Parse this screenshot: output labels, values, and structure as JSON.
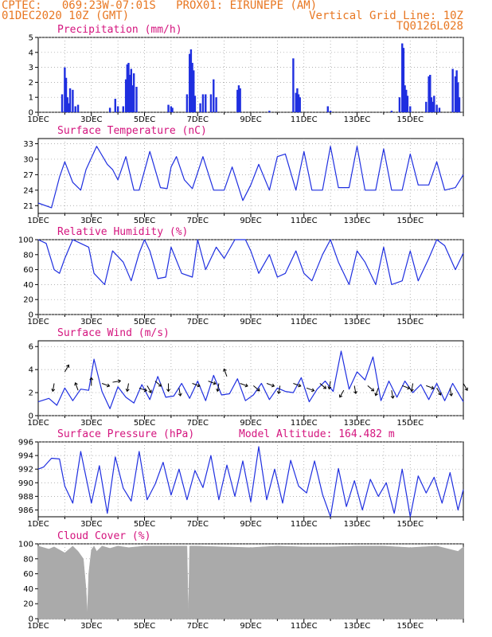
{
  "header": {
    "line1_left": "CPTEC:   069:23W-07:01S   PROX01: EIRUNEPE (AM)",
    "line2_left": "01DEC2020 10Z (GMT)",
    "line2_right": "Vertical Grid Line: 10Z",
    "line3_right": "TQ0126L028"
  },
  "colors": {
    "header_text": "#e87722",
    "panel_title": "#d4147e",
    "series": "#1f2fe0",
    "cloud": "#aaaaaa",
    "grid": "#999999"
  },
  "x_axis_labels": [
    "1DEC",
    "3DEC",
    "5DEC",
    "7DEC",
    "9DEC",
    "11DEC",
    "13DEC",
    "15DEC"
  ],
  "panels": [
    {
      "key": "precip",
      "title": "Precipitation (mm/h)",
      "subtitle": ""
    },
    {
      "key": "temp",
      "title": "Surface Temperature (nC)",
      "subtitle": ""
    },
    {
      "key": "rh",
      "title": "Relative Humidity (%)",
      "subtitle": ""
    },
    {
      "key": "wind",
      "title": "Surface Wind (m/s)",
      "subtitle": ""
    },
    {
      "key": "pres",
      "title": "Surface Pressure (hPa)",
      "subtitle": "Model Altitude: 164.482 m"
    },
    {
      "key": "cloud",
      "title": "Cloud Cover (%)",
      "subtitle": ""
    }
  ],
  "chart_data": [
    {
      "type": "bar",
      "title": "Precipitation (mm/h)",
      "x_unit": "days since 01DEC2020 10Z",
      "ylim": [
        0,
        5
      ],
      "yticks": [
        0,
        1,
        2,
        3,
        4,
        5
      ],
      "x": [
        0.9,
        1.0,
        1.05,
        1.1,
        1.15,
        1.2,
        1.3,
        1.4,
        1.5,
        2.7,
        2.9,
        3.0,
        3.2,
        3.3,
        3.35,
        3.4,
        3.45,
        3.5,
        3.55,
        3.6,
        3.7,
        4.9,
        5.0,
        5.05,
        5.6,
        5.7,
        5.75,
        5.8,
        5.85,
        5.9,
        6.1,
        6.2,
        6.3,
        6.5,
        6.6,
        6.7,
        7.5,
        7.55,
        7.6,
        8.7,
        9.6,
        9.7,
        9.75,
        9.8,
        9.85,
        10.9,
        11.0,
        13.3,
        13.6,
        13.7,
        13.75,
        13.8,
        13.85,
        13.9,
        14.0,
        14.6,
        14.7,
        14.75,
        14.8,
        14.85,
        14.9,
        15.0,
        15.1,
        15.6,
        15.7,
        15.75,
        15.8,
        15.85
      ],
      "values": [
        1.2,
        3.0,
        2.3,
        1.0,
        0.6,
        1.6,
        1.5,
        0.4,
        0.5,
        0.3,
        0.9,
        0.4,
        0.4,
        2.2,
        3.2,
        3.3,
        2.5,
        2.9,
        1.8,
        2.6,
        1.7,
        0.5,
        0.4,
        0.3,
        1.2,
        3.9,
        4.2,
        3.3,
        2.8,
        1.1,
        0.6,
        1.2,
        1.2,
        1.2,
        2.2,
        1.0,
        1.5,
        1.8,
        1.6,
        0.1,
        3.6,
        1.3,
        1.6,
        1.2,
        1.0,
        0.4,
        0.1,
        0.1,
        1.0,
        4.6,
        4.3,
        1.8,
        1.5,
        1.1,
        0.4,
        0.7,
        2.4,
        2.5,
        1.0,
        0.7,
        1.1,
        0.5,
        0.3,
        2.9,
        2.4,
        2.8,
        2.0,
        1.0
      ]
    },
    {
      "type": "line",
      "title": "Surface Temperature (nC)",
      "x_unit": "days since 01DEC2020 10Z",
      "ylim": [
        19.5,
        34
      ],
      "yticks": [
        21,
        24,
        27,
        30,
        33
      ],
      "x": [
        0.0,
        0.5,
        0.8,
        1.0,
        1.3,
        1.6,
        1.8,
        2.2,
        2.6,
        2.8,
        3.0,
        3.3,
        3.6,
        3.8,
        4.2,
        4.6,
        4.85,
        5.0,
        5.2,
        5.5,
        5.8,
        6.2,
        6.6,
        7.0,
        7.3,
        7.7,
        8.0,
        8.3,
        8.7,
        9.0,
        9.3,
        9.7,
        10.0,
        10.3,
        10.7,
        11.0,
        11.3,
        11.7,
        12.0,
        12.3,
        12.7,
        13.0,
        13.3,
        13.7,
        14.0,
        14.3,
        14.7,
        15.0,
        15.3,
        15.7,
        16.0
      ],
      "y": [
        21.5,
        20.6,
        26.5,
        29.5,
        25.5,
        24.0,
        28.0,
        32.5,
        29.0,
        28.0,
        26.0,
        30.5,
        24.0,
        24.0,
        31.5,
        24.5,
        24.3,
        28.5,
        30.5,
        26.0,
        24.3,
        30.5,
        24.0,
        24.0,
        28.5,
        22.0,
        25.0,
        29.0,
        24.0,
        30.5,
        31.0,
        24.0,
        31.5,
        24.0,
        24.0,
        32.5,
        24.5,
        24.5,
        32.5,
        24.0,
        24.0,
        32.0,
        24.0,
        24.0,
        31.0,
        25.0,
        25.0,
        29.5,
        24.0,
        24.5,
        27.0
      ]
    },
    {
      "type": "line",
      "title": "Relative Humidity (%)",
      "x_unit": "days since 01DEC2020 10Z",
      "ylim": [
        0,
        100
      ],
      "yticks": [
        0,
        20,
        40,
        60,
        80,
        100
      ],
      "x": [
        0.0,
        0.3,
        0.6,
        0.8,
        1.0,
        1.3,
        1.6,
        1.9,
        2.1,
        2.5,
        2.8,
        3.2,
        3.5,
        3.8,
        4.0,
        4.2,
        4.5,
        4.8,
        5.0,
        5.4,
        5.8,
        6.0,
        6.3,
        6.7,
        7.0,
        7.4,
        7.8,
        8.0,
        8.3,
        8.7,
        9.0,
        9.3,
        9.7,
        10.0,
        10.3,
        10.7,
        11.0,
        11.3,
        11.7,
        12.0,
        12.3,
        12.7,
        13.0,
        13.3,
        13.7,
        14.0,
        14.3,
        14.7,
        15.0,
        15.3,
        15.7,
        16.0
      ],
      "y": [
        100,
        95,
        60,
        55,
        75,
        100,
        95,
        90,
        55,
        40,
        85,
        70,
        45,
        82,
        100,
        85,
        48,
        50,
        90,
        55,
        50,
        100,
        60,
        90,
        75,
        100,
        100,
        85,
        55,
        80,
        50,
        55,
        85,
        55,
        45,
        80,
        100,
        70,
        40,
        85,
        70,
        40,
        90,
        40,
        45,
        85,
        45,
        75,
        100,
        92,
        60,
        82
      ]
    },
    {
      "type": "line",
      "title": "Surface Wind (m/s)",
      "x_unit": "days since 01DEC2020 10Z",
      "ylim": [
        0,
        6.5
      ],
      "yticks": [
        0,
        2,
        4,
        6
      ],
      "x": [
        0.0,
        0.4,
        0.7,
        1.0,
        1.3,
        1.6,
        1.9,
        2.1,
        2.4,
        2.7,
        3.0,
        3.3,
        3.6,
        3.9,
        4.2,
        4.5,
        4.8,
        5.1,
        5.4,
        5.7,
        6.0,
        6.3,
        6.6,
        6.9,
        7.2,
        7.5,
        7.8,
        8.1,
        8.4,
        8.7,
        9.0,
        9.3,
        9.6,
        9.9,
        10.2,
        10.5,
        10.8,
        11.1,
        11.4,
        11.7,
        12.0,
        12.3,
        12.6,
        12.9,
        13.2,
        13.5,
        13.8,
        14.1,
        14.4,
        14.7,
        15.0,
        15.3,
        15.6,
        16.0
      ],
      "y": [
        1.2,
        1.5,
        0.9,
        2.4,
        1.3,
        2.3,
        2.2,
        4.9,
        2.1,
        0.6,
        2.5,
        1.6,
        1.1,
        2.7,
        1.4,
        3.4,
        1.6,
        1.7,
        2.8,
        1.5,
        3.0,
        1.3,
        3.5,
        1.8,
        1.9,
        3.2,
        1.3,
        1.8,
        2.8,
        1.4,
        2.4,
        2.1,
        2.0,
        3.3,
        1.2,
        2.3,
        3.0,
        2.1,
        5.6,
        2.3,
        3.8,
        3.1,
        5.1,
        1.3,
        3.0,
        1.6,
        3.0,
        2.0,
        2.7,
        1.4,
        2.8,
        1.3,
        2.8,
        1.2
      ]
    },
    {
      "type": "line",
      "title": "Surface Pressure (hPa)",
      "x_unit": "days since 01DEC2020 10Z",
      "ylim": [
        985,
        996
      ],
      "yticks": [
        986,
        988,
        990,
        992,
        994,
        996
      ],
      "x": [
        0.0,
        0.2,
        0.5,
        0.8,
        1.0,
        1.3,
        1.6,
        2.0,
        2.3,
        2.6,
        2.9,
        3.2,
        3.5,
        3.8,
        4.1,
        4.4,
        4.7,
        5.0,
        5.3,
        5.6,
        5.9,
        6.2,
        6.5,
        6.8,
        7.1,
        7.4,
        7.7,
        8.0,
        8.3,
        8.6,
        8.9,
        9.2,
        9.5,
        9.8,
        10.1,
        10.4,
        10.7,
        11.0,
        11.3,
        11.6,
        11.9,
        12.2,
        12.5,
        12.8,
        13.1,
        13.4,
        13.7,
        14.0,
        14.3,
        14.6,
        14.9,
        15.2,
        15.5,
        15.8,
        16.0
      ],
      "y": [
        992.0,
        992.3,
        993.6,
        993.5,
        989.5,
        987.0,
        994.6,
        987.0,
        992.5,
        985.5,
        993.8,
        989.2,
        987.3,
        994.6,
        987.5,
        989.8,
        993.0,
        988.2,
        992.0,
        987.5,
        991.8,
        989.3,
        994.0,
        987.5,
        992.6,
        988.0,
        993.2,
        987.2,
        995.3,
        987.5,
        992.0,
        987.0,
        993.3,
        989.5,
        988.5,
        993.2,
        988.3,
        985.0,
        992.1,
        986.5,
        990.3,
        986.0,
        990.5,
        988.0,
        990.0,
        985.5,
        992.0,
        985.0,
        991.0,
        988.5,
        990.8,
        987.0,
        991.5,
        986.0,
        989.0
      ]
    },
    {
      "type": "area",
      "title": "Cloud Cover (%)",
      "x_unit": "days since 01DEC2020 10Z",
      "ylim": [
        0,
        100
      ],
      "yticks": [
        0,
        20,
        40,
        60,
        80,
        100
      ],
      "x": [
        0.0,
        0.4,
        0.6,
        1.0,
        1.3,
        1.5,
        1.7,
        1.8,
        1.85,
        1.9,
        2.0,
        2.1,
        2.2,
        2.4,
        2.7,
        3.0,
        3.4,
        4.0,
        5.0,
        5.6,
        5.65,
        5.7,
        6.0,
        7.0,
        8.0,
        9.0,
        10.0,
        11.0,
        12.0,
        13.0,
        14.0,
        15.0,
        15.8,
        16.0
      ],
      "y": [
        97,
        93,
        96,
        88,
        97,
        90,
        80,
        40,
        5,
        60,
        92,
        97,
        90,
        97,
        94,
        97,
        95,
        97,
        97,
        97,
        2,
        97,
        97,
        96,
        95,
        97,
        96,
        96,
        97,
        97,
        95,
        97,
        90,
        96
      ]
    }
  ],
  "wind_vectors": {
    "x": [
      0.6,
      1.0,
      1.5,
      2.0,
      2.4,
      2.8,
      3.4,
      3.8,
      4.1,
      4.4,
      4.9,
      5.3,
      5.8,
      6.4,
      6.8,
      7.1,
      7.6,
      8.1,
      8.6,
      9.1,
      9.6,
      10.1,
      10.6,
      11.0,
      11.5,
      11.9,
      12.4,
      12.8,
      13.3,
      13.7,
      14.1,
      14.6,
      15.0,
      15.5,
      16.0
    ],
    "y": [
      2.8,
      3.8,
      2.2,
      2.6,
      2.8,
      2.9,
      2.8,
      2.4,
      2.6,
      3.0,
      2.8,
      2.4,
      2.8,
      3.0,
      2.8,
      3.4,
      2.8,
      2.6,
      2.8,
      2.6,
      2.8,
      2.4,
      2.8,
      3.0,
      2.2,
      2.6,
      2.6,
      2.4,
      2.2,
      2.6,
      2.8,
      2.6,
      2.4,
      2.4,
      2.8
    ],
    "angle_deg": [
      100,
      300,
      250,
      270,
      20,
      350,
      100,
      20,
      60,
      40,
      90,
      80,
      20,
      20,
      100,
      250,
      20,
      40,
      20,
      100,
      20,
      20,
      40,
      100,
      120,
      80,
      40,
      110,
      80,
      20,
      100,
      20,
      60,
      80,
      60
    ]
  }
}
